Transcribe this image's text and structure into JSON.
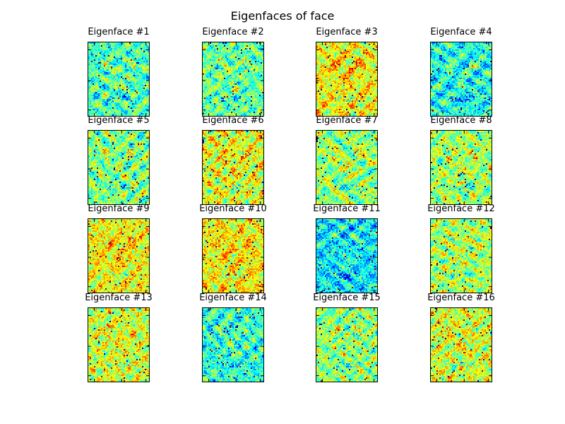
{
  "chart_data": {
    "type": "heatmap",
    "title": "Eigenfaces of face",
    "colormap": "jet",
    "panels": [
      {
        "title": "Eigenface #1",
        "bias": -0.05
      },
      {
        "title": "Eigenface #2",
        "bias": -0.03
      },
      {
        "title": "Eigenface #3",
        "bias": 0.12
      },
      {
        "title": "Eigenface #4",
        "bias": -0.1
      },
      {
        "title": "Eigenface #5",
        "bias": 0.0
      },
      {
        "title": "Eigenface #6",
        "bias": 0.1
      },
      {
        "title": "Eigenface #7",
        "bias": 0.02
      },
      {
        "title": "Eigenface #8",
        "bias": 0.03
      },
      {
        "title": "Eigenface #9",
        "bias": 0.12
      },
      {
        "title": "Eigenface #10",
        "bias": 0.13
      },
      {
        "title": "Eigenface #11",
        "bias": -0.14
      },
      {
        "title": "Eigenface #12",
        "bias": 0.04
      },
      {
        "title": "Eigenface #13",
        "bias": 0.08
      },
      {
        "title": "Eigenface #14",
        "bias": -0.08
      },
      {
        "title": "Eigenface #15",
        "bias": 0.01
      },
      {
        "title": "Eigenface #16",
        "bias": 0.08
      }
    ],
    "grid": false,
    "ticks_labels": false
  }
}
